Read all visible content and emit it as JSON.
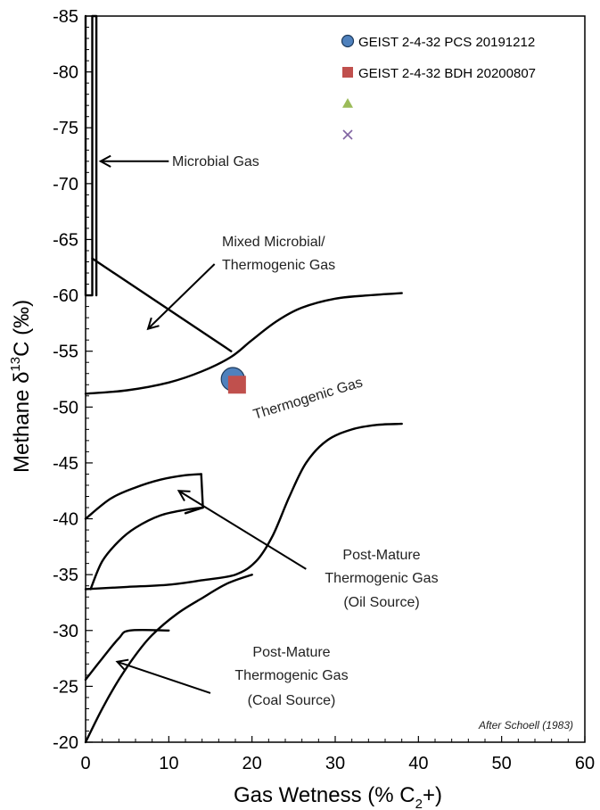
{
  "chart_data": {
    "type": "scatter",
    "xlabel_main": "Gas Wetness (% C",
    "xlabel_sub": "2",
    "xlabel_tail": "+)",
    "ylabel_main": "Methane  δ",
    "ylabel_sup": "13",
    "ylabel_tail": "C (‰)",
    "xlim": [
      0,
      60
    ],
    "ylim": [
      -20,
      -85
    ],
    "x_ticks": [
      "0",
      "10",
      "20",
      "30",
      "40",
      "50",
      "60"
    ],
    "y_ticks": [
      "-20",
      "-25",
      "-30",
      "-35",
      "-40",
      "-45",
      "-50",
      "-55",
      "-60",
      "-65",
      "-70",
      "-75",
      "-80",
      "-85"
    ],
    "legend_position": "top-right",
    "series": [
      {
        "name": "GEIST 2-4-32 PCS 20191212",
        "marker": "circle",
        "color": "#4f81bd",
        "points": [
          [
            17.7,
            -52.5
          ]
        ]
      },
      {
        "name": "GEIST 2-4-32 BDH 20200807",
        "marker": "square",
        "color": "#c0504d",
        "points": [
          [
            18.2,
            -52.0
          ]
        ]
      },
      {
        "name": "",
        "marker": "triangle",
        "color": "#9bbb59",
        "points": []
      },
      {
        "name": "",
        "marker": "x",
        "color": "#8064a2",
        "points": []
      }
    ],
    "annotations": {
      "microbial": "Microbial Gas",
      "mixed_1": "Mixed Microbial/",
      "mixed_2": "Thermogenic Gas",
      "thermogenic": "Thermogenic Gas",
      "oil_1": "Post-Mature",
      "oil_2": "Thermogenic Gas",
      "oil_3": "(Oil Source)",
      "coal_1": "Post-Mature",
      "coal_2": "Thermogenic Gas",
      "coal_3": "(Coal Source)"
    },
    "credit": "After Schoell (1983)",
    "field_boundaries": {
      "microbial_box": [
        [
          0,
          -85
        ],
        [
          0,
          -60
        ],
        [
          0.8,
          -60
        ],
        [
          0.8,
          -85
        ],
        [
          1.3,
          -85
        ],
        [
          1.3,
          -60
        ]
      ],
      "mixed_line": [
        [
          0.8,
          -63.3
        ],
        [
          17.5,
          -55
        ]
      ],
      "thermogenic_upper": [
        [
          0,
          -51.2
        ],
        [
          5,
          -51.5
        ],
        [
          10,
          -52.2
        ],
        [
          14,
          -53.2
        ],
        [
          17.5,
          -54.5
        ],
        [
          20,
          -56
        ],
        [
          23,
          -57.7
        ],
        [
          26,
          -58.9
        ],
        [
          30,
          -59.7
        ],
        [
          34,
          -60
        ],
        [
          38,
          -60.2
        ]
      ],
      "thermogenic_lower": [
        [
          0,
          -33.7
        ],
        [
          5,
          -33.9
        ],
        [
          10,
          -34.1
        ],
        [
          14,
          -34.5
        ],
        [
          18,
          -35
        ],
        [
          20.5,
          -36.2
        ],
        [
          22.5,
          -38.5
        ],
        [
          24.5,
          -42
        ],
        [
          26.5,
          -45
        ],
        [
          29,
          -47
        ],
        [
          32,
          -48
        ],
        [
          35,
          -48.4
        ],
        [
          38,
          -48.5
        ]
      ],
      "oil_outer": [
        [
          0,
          -40
        ],
        [
          3,
          -41.8
        ],
        [
          6,
          -42.8
        ],
        [
          9,
          -43.5
        ],
        [
          12,
          -43.9
        ],
        [
          13.9,
          -44
        ]
      ],
      "oil_right": [
        [
          13.9,
          -44
        ],
        [
          14.1,
          -41
        ]
      ],
      "oil_inner": [
        [
          0.6,
          -33.7
        ],
        [
          2,
          -36.2
        ],
        [
          4,
          -38
        ],
        [
          6,
          -39.2
        ],
        [
          9,
          -40.3
        ],
        [
          12,
          -40.8
        ],
        [
          14.1,
          -41
        ]
      ],
      "oil_tail": [
        [
          14.1,
          -41
        ],
        [
          12,
          -40.5
        ]
      ],
      "coal_upper": [
        [
          0,
          -25.6
        ],
        [
          2,
          -27.5
        ],
        [
          4,
          -29.3
        ],
        [
          5.3,
          -30
        ],
        [
          10,
          -30
        ]
      ],
      "coal_lower": [
        [
          0,
          -20
        ],
        [
          2,
          -23
        ],
        [
          4,
          -25.6
        ],
        [
          6,
          -27.8
        ],
        [
          8,
          -29.6
        ],
        [
          11,
          -31.5
        ],
        [
          14,
          -32.9
        ],
        [
          17,
          -34.2
        ],
        [
          20,
          -35
        ]
      ]
    },
    "arrows": [
      {
        "from": [
          10,
          -72
        ],
        "to": [
          1.8,
          -72
        ]
      },
      {
        "from": [
          15.5,
          -62.8
        ],
        "to": [
          7.5,
          -57
        ]
      },
      {
        "from": [
          26.5,
          -35.5
        ],
        "to": [
          11.2,
          -42.5
        ]
      },
      {
        "from": [
          15,
          -24.4
        ],
        "to": [
          3.8,
          -27.2
        ]
      }
    ]
  }
}
